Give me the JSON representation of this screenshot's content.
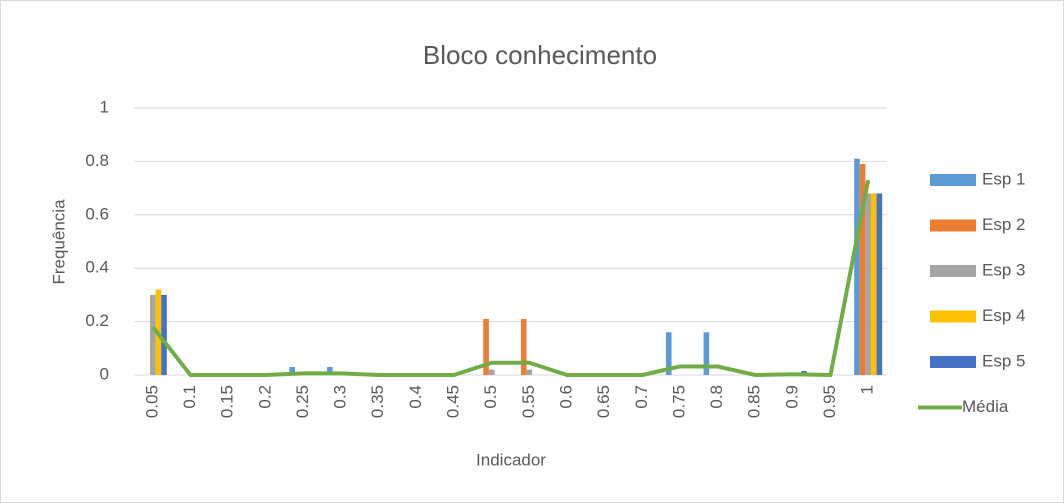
{
  "chart_data": {
    "type": "bar",
    "title": "Bloco conhecimento",
    "x_label": "Indicador",
    "y_label": "Frequência",
    "categories": [
      "0.05",
      "0.1",
      "0.15",
      "0.2",
      "0.25",
      "0.3",
      "0.35",
      "0.4",
      "0.45",
      "0.5",
      "0.55",
      "0.6",
      "0.65",
      "0.7",
      "0.75",
      "0.8",
      "0.85",
      "0.9",
      "0.95",
      "1"
    ],
    "series": [
      {
        "name": "Esp 1",
        "type": "bar",
        "color": "#5b9bd5",
        "values": [
          0,
          0,
          0,
          0,
          0.03,
          0.03,
          0,
          0,
          0,
          0,
          0,
          0,
          0,
          0,
          0.16,
          0.16,
          0,
          0,
          0,
          0.81
        ]
      },
      {
        "name": "Esp 2",
        "type": "bar",
        "color": "#ed7d31",
        "values": [
          0,
          0,
          0,
          0,
          0,
          0,
          0,
          0,
          0,
          0.21,
          0.21,
          0,
          0,
          0,
          0,
          0,
          0,
          0,
          0,
          0.79
        ]
      },
      {
        "name": "Esp 3",
        "type": "bar",
        "color": "#a5a5a5",
        "values": [
          0.3,
          0,
          0,
          0,
          0,
          0,
          0,
          0,
          0,
          0.02,
          0.02,
          0,
          0,
          0,
          0,
          0,
          0,
          0,
          0,
          0.68
        ]
      },
      {
        "name": "Esp 4",
        "type": "bar",
        "color": "#ffc000",
        "values": [
          0.32,
          0,
          0,
          0,
          0,
          0,
          0,
          0,
          0,
          0,
          0,
          0,
          0,
          0,
          0,
          0,
          0,
          0,
          0,
          0.68
        ]
      },
      {
        "name": "Esp 5",
        "type": "bar",
        "color": "#4472c4",
        "values": [
          0.3,
          0,
          0,
          0,
          0,
          0,
          0,
          0,
          0,
          0,
          0,
          0,
          0,
          0,
          0,
          0,
          0,
          0.015,
          0,
          0.68
        ]
      },
      {
        "name": "Média",
        "type": "line",
        "color": "#70ad47",
        "values": [
          0.18,
          0,
          0,
          0,
          0.006,
          0.006,
          0,
          0,
          0,
          0.046,
          0.046,
          0,
          0,
          0,
          0.032,
          0.032,
          0,
          0.003,
          0,
          0.73
        ]
      }
    ],
    "ylim": [
      0,
      1
    ],
    "yticks": [
      0,
      0.2,
      0.4,
      0.6,
      0.8,
      1
    ],
    "grid": true,
    "legend": "right"
  }
}
